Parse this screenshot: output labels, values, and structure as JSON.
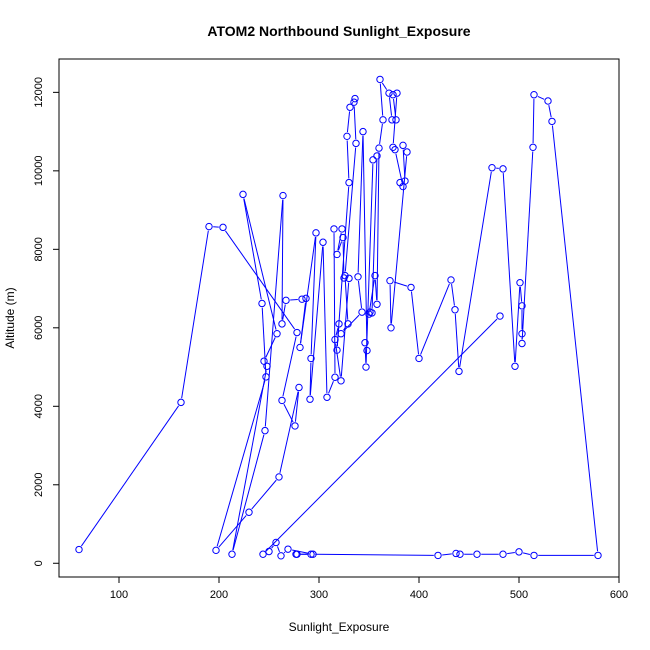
{
  "chart_data": {
    "type": "line",
    "title": "ATOM2 Northbound Sunlight_Exposure",
    "xlabel": "Sunlight_Exposure",
    "ylabel": "Altitude (m)",
    "xlim": [
      40,
      600
    ],
    "ylim": [
      -350,
      12850
    ],
    "x_ticks": [
      100,
      200,
      300,
      400,
      500,
      600
    ],
    "y_ticks": [
      0,
      2000,
      4000,
      6000,
      8000,
      10000,
      12000
    ],
    "grid": false,
    "marker": "open-circle",
    "colors": {
      "series": "#0000ff",
      "axis": "#000000"
    },
    "series": [
      {
        "points": [
          [
            60,
            350
          ],
          [
            162,
            4100
          ],
          [
            190,
            8580
          ],
          [
            204,
            8560
          ],
          [
            278,
            5880
          ],
          [
            263,
            4150
          ],
          [
            276,
            3500
          ],
          [
            280,
            4480
          ],
          [
            260,
            2200
          ],
          [
            230,
            1300
          ],
          [
            197,
            330
          ],
          [
            247,
            4750
          ],
          [
            243,
            6620
          ],
          [
            224,
            9400
          ],
          [
            258,
            5850
          ],
          [
            245,
            5150
          ],
          [
            248,
            5020
          ],
          [
            213,
            230
          ],
          [
            246,
            3380
          ],
          [
            264,
            9370
          ],
          [
            263,
            6100
          ],
          [
            267,
            6700
          ],
          [
            283,
            6730
          ],
          [
            287,
            6750
          ],
          [
            281,
            5500
          ],
          [
            297,
            8420
          ],
          [
            292,
            5220
          ],
          [
            291,
            4180
          ],
          [
            304,
            8180
          ],
          [
            308,
            4230
          ],
          [
            316,
            4740
          ],
          [
            315,
            8520
          ],
          [
            323,
            8520
          ],
          [
            318,
            7870
          ],
          [
            324,
            8300
          ],
          [
            325,
            7270
          ],
          [
            330,
            7260
          ],
          [
            322,
            4650
          ],
          [
            316,
            5700
          ],
          [
            320,
            6100
          ],
          [
            318,
            5430
          ],
          [
            330,
            9700
          ],
          [
            328,
            10880
          ],
          [
            331,
            11620
          ],
          [
            336,
            11840
          ],
          [
            335,
            11750
          ],
          [
            337,
            10700
          ],
          [
            326,
            7330
          ],
          [
            329,
            6100
          ],
          [
            322,
            5850
          ],
          [
            343,
            6400
          ],
          [
            339,
            7300
          ],
          [
            344,
            11000
          ],
          [
            348,
            5420
          ],
          [
            346,
            5620
          ],
          [
            347,
            5000
          ],
          [
            354,
            10280
          ],
          [
            358,
            10380
          ],
          [
            353,
            6380
          ],
          [
            351,
            6400
          ],
          [
            350,
            6350
          ],
          [
            356,
            7330
          ],
          [
            358,
            6600
          ],
          [
            360,
            10580
          ],
          [
            364,
            11300
          ],
          [
            361,
            12330
          ],
          [
            370,
            11980
          ],
          [
            373,
            11300
          ],
          [
            377,
            11300
          ],
          [
            374,
            11940
          ],
          [
            378,
            11980
          ],
          [
            374,
            10600
          ],
          [
            376,
            10540
          ],
          [
            384,
            9600
          ],
          [
            381,
            9700
          ],
          [
            386,
            9740
          ],
          [
            384,
            10650
          ],
          [
            388,
            10480
          ],
          [
            372,
            6000
          ],
          [
            371,
            7200
          ],
          [
            392,
            7030
          ],
          [
            400,
            5220
          ],
          [
            432,
            7220
          ],
          [
            436,
            6460
          ],
          [
            440,
            4890
          ],
          [
            473,
            10080
          ],
          [
            484,
            10050
          ],
          [
            496,
            5020
          ],
          [
            501,
            7150
          ],
          [
            503,
            6560
          ],
          [
            503,
            5850
          ],
          [
            503,
            5600
          ],
          [
            514,
            10600
          ],
          [
            515,
            11940
          ],
          [
            529,
            11780
          ],
          [
            533,
            11260
          ],
          [
            579,
            200
          ],
          [
            515,
            200
          ],
          [
            500,
            290
          ],
          [
            484,
            230
          ],
          [
            458,
            230
          ],
          [
            441,
            230
          ],
          [
            437,
            250
          ],
          [
            419,
            200
          ],
          [
            292,
            230
          ],
          [
            277,
            230
          ],
          [
            278,
            230
          ],
          [
            294,
            230
          ],
          [
            269,
            360
          ],
          [
            262,
            190
          ],
          [
            257,
            530
          ],
          [
            250,
            300
          ],
          [
            244,
            230
          ],
          [
            481,
            6300
          ]
        ]
      }
    ]
  }
}
